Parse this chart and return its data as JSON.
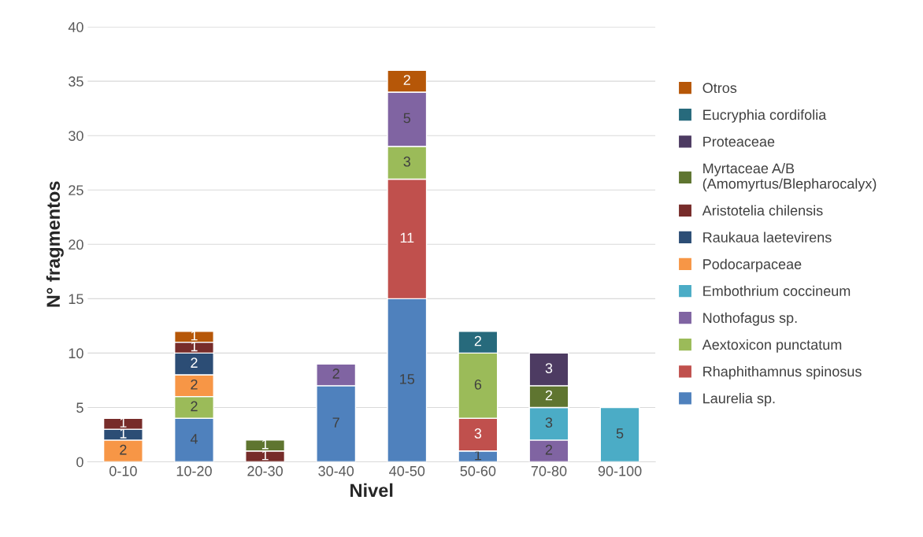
{
  "chart_data": {
    "type": "bar",
    "stacked": true,
    "xlabel": "Nivel",
    "ylabel": "N° fragmentos",
    "categories": [
      "0-10",
      "10-20",
      "20-30",
      "30-40",
      "40-50",
      "50-60",
      "70-80",
      "90-100"
    ],
    "series": [
      {
        "name": "Laurelia sp.",
        "color": "#4f81bd",
        "values": [
          null,
          4,
          null,
          7,
          15,
          1,
          null,
          null
        ]
      },
      {
        "name": "Rhaphithamnus spinosus",
        "color": "#c0504d",
        "values": [
          null,
          null,
          null,
          null,
          11,
          3,
          null,
          null
        ]
      },
      {
        "name": "Aextoxicon punctatum",
        "color": "#9bbb59",
        "values": [
          null,
          2,
          null,
          null,
          3,
          6,
          null,
          null
        ]
      },
      {
        "name": "Nothofagus sp.",
        "color": "#8064a2",
        "values": [
          null,
          null,
          null,
          2,
          5,
          null,
          2,
          null
        ]
      },
      {
        "name": "Embothrium coccineum",
        "color": "#4bacc6",
        "values": [
          null,
          null,
          null,
          null,
          null,
          null,
          3,
          5
        ]
      },
      {
        "name": "Podocarpaceae",
        "color": "#f79646",
        "values": [
          2,
          2,
          null,
          null,
          null,
          null,
          null,
          null
        ]
      },
      {
        "name": "Raukaua laetevirens",
        "color": "#2c4d75",
        "values": [
          1,
          2,
          null,
          null,
          null,
          null,
          null,
          null
        ]
      },
      {
        "name": "Aristotelia chilensis",
        "color": "#772c2a",
        "values": [
          1,
          1,
          1,
          null,
          null,
          null,
          null,
          null
        ]
      },
      {
        "name": "Myrtaceae A/B\n(Amomyrtus/Blepharocalyx)",
        "color": "#5f7530",
        "values": [
          null,
          null,
          1,
          null,
          null,
          null,
          2,
          null
        ]
      },
      {
        "name": "Proteaceae",
        "color": "#4d3b62",
        "values": [
          null,
          null,
          null,
          null,
          null,
          null,
          3,
          null
        ]
      },
      {
        "name": "Eucryphia cordifolia",
        "color": "#276a7c",
        "values": [
          null,
          null,
          null,
          null,
          null,
          2,
          null,
          null
        ]
      },
      {
        "name": "Otros",
        "color": "#b65708",
        "values": [
          null,
          1,
          null,
          null,
          2,
          null,
          null,
          null
        ]
      }
    ],
    "ylim": [
      0,
      40
    ],
    "yticks": [
      0,
      5,
      10,
      15,
      20,
      25,
      30,
      35,
      40
    ],
    "grid": "y",
    "legend": "right",
    "data_labels": true
  }
}
